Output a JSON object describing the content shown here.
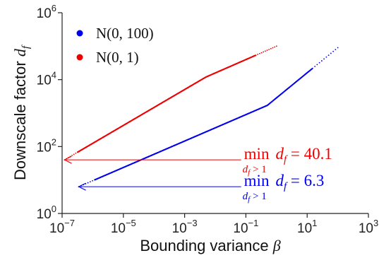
{
  "chart_data": {
    "type": "scatter",
    "xlabel": {
      "text": "Bounding variance ",
      "symbol": "β"
    },
    "ylabel": {
      "text": "Downscale factor ",
      "symbol": "d",
      "subscript": "f"
    },
    "x_scale": "log",
    "y_scale": "log",
    "xlim": [
      1e-07,
      1000
    ],
    "ylim": [
      1,
      1000000
    ],
    "x_ticks": [
      {
        "value": 1e-07,
        "base": "10",
        "exp": "−7"
      },
      {
        "value": 1e-05,
        "base": "10",
        "exp": "−5"
      },
      {
        "value": 0.001,
        "base": "10",
        "exp": "−3"
      },
      {
        "value": 0.1,
        "base": "10",
        "exp": "−1"
      },
      {
        "value": 10,
        "base": "10",
        "exp": "1"
      },
      {
        "value": 1000,
        "base": "10",
        "exp": "3"
      }
    ],
    "y_ticks": [
      {
        "value": 1,
        "base": "10",
        "exp": "0"
      },
      {
        "value": 100,
        "base": "10",
        "exp": "2"
      },
      {
        "value": 10000,
        "base": "10",
        "exp": "4"
      },
      {
        "value": 1000000,
        "base": "10",
        "exp": "6"
      }
    ],
    "grid": false,
    "legend_position": "top-left",
    "series": [
      {
        "name_base": "N(0, 100)",
        "color": "#0000ee",
        "x_range": [
          3.5e-07,
          100
        ],
        "y_range": [
          6.3,
          90000
        ],
        "bend_x": 0.5,
        "bend_y": 1700
      },
      {
        "name_base": "N(0, 1)",
        "color": "#ee0000",
        "x_range": [
          1.2e-07,
          1
        ],
        "y_range": [
          40.1,
          100000
        ],
        "bend_x": 0.005,
        "bend_y": 12000
      }
    ],
    "annotations": [
      {
        "color": "#ee0000",
        "op": "min",
        "condition": "d",
        "condition_sub": "f",
        "condition_rel": " > 1",
        "var": "d",
        "var_sub": "f",
        "rel": " = 40.1",
        "min_value": 40.1,
        "arrow_to_x": 1.2e-07,
        "arrow_from_x": 0.07
      },
      {
        "color": "#0000ee",
        "op": "min",
        "condition": "d",
        "condition_sub": "f",
        "condition_rel": " > 1",
        "var": "d",
        "var_sub": "f",
        "rel": " = 6.3",
        "min_value": 6.3,
        "arrow_to_x": 3.5e-07,
        "arrow_from_x": 0.07
      }
    ]
  }
}
